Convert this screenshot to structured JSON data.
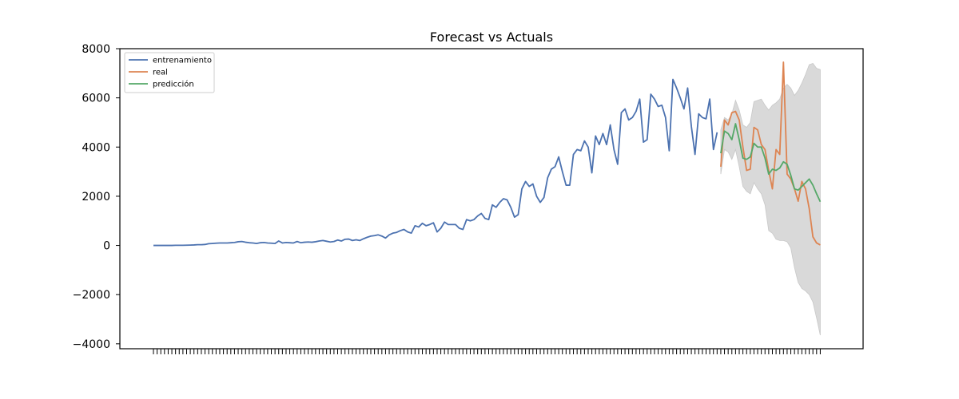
{
  "chart_data": {
    "type": "line",
    "title": "Forecast vs Actuals",
    "xlabel": "",
    "ylabel": "",
    "ylim": [
      -4200,
      8000
    ],
    "yticks": [
      -4000,
      -2000,
      0,
      2000,
      4000,
      6000,
      8000
    ],
    "ytick_labels": [
      "−4000",
      "−2000",
      "0",
      "2000",
      "4000",
      "6000",
      "8000"
    ],
    "x_tick_labels_note": "dense overlapping date labels",
    "legend": {
      "placement": "top-left",
      "entries": [
        "entrenamiento",
        "real",
        "predicción"
      ]
    },
    "grid": false,
    "colors": {
      "entrenamiento": "#4c72b0",
      "real": "#dd8452",
      "prediccion": "#55a868",
      "interval": "#d9d9d9"
    },
    "series": [
      {
        "name": "entrenamiento",
        "start_index": 0,
        "values": [
          0,
          0,
          0,
          0,
          0,
          0,
          5,
          5,
          5,
          10,
          15,
          20,
          30,
          30,
          40,
          70,
          80,
          90,
          100,
          100,
          100,
          110,
          120,
          150,
          160,
          130,
          110,
          100,
          80,
          110,
          120,
          100,
          90,
          80,
          180,
          100,
          120,
          110,
          100,
          160,
          110,
          130,
          140,
          130,
          150,
          180,
          200,
          170,
          140,
          160,
          220,
          180,
          250,
          260,
          200,
          230,
          200,
          270,
          330,
          380,
          400,
          430,
          380,
          300,
          430,
          500,
          530,
          600,
          650,
          550,
          500,
          800,
          750,
          900,
          800,
          850,
          920,
          550,
          700,
          950,
          850,
          850,
          850,
          700,
          650,
          1050,
          1000,
          1050,
          1200,
          1300,
          1100,
          1050,
          1650,
          1550,
          1750,
          1900,
          1850,
          1550,
          1150,
          1250,
          2300,
          2600,
          2400,
          2500,
          2000,
          1750,
          1950,
          2750,
          3100,
          3200,
          3600,
          3000,
          2450,
          2450,
          3700,
          3900,
          3850,
          4250,
          4000,
          2950,
          4450,
          4100,
          4550,
          4100,
          4900,
          3900,
          3300,
          5400,
          5550,
          5100,
          5200,
          5450,
          5950,
          4200,
          4300,
          6150,
          5950,
          5650,
          5700,
          5200,
          3850,
          6750,
          6400,
          6000,
          5550,
          6400,
          4850,
          3700,
          5350,
          5200,
          5150,
          5950,
          3900,
          4600
        ]
      },
      {
        "name": "real",
        "start_index": 154,
        "values": [
          3200,
          5100,
          4900,
          5400,
          5450,
          5100,
          4000,
          3050,
          3100,
          4800,
          4700,
          4100,
          3900,
          3050,
          2300,
          3900,
          3700,
          7450,
          2900,
          2700,
          2300,
          1800,
          2600,
          2300,
          1500,
          350,
          100,
          20
        ]
      },
      {
        "name": "predicción",
        "start_index": 154,
        "values": [
          3750,
          4650,
          4550,
          4300,
          4950,
          4300,
          3550,
          3500,
          3600,
          4150,
          4000,
          4000,
          3550,
          2900,
          3100,
          3050,
          3150,
          3400,
          3300,
          2850,
          2300,
          2250,
          2400,
          2550,
          2700,
          2450,
          2100,
          1780
        ]
      }
    ],
    "interval": {
      "start_index": 154,
      "upper": [
        4700,
        5200,
        5100,
        5350,
        5900,
        5500,
        4900,
        4800,
        5000,
        5850,
        5900,
        5950,
        5700,
        5500,
        5700,
        5800,
        5950,
        6400,
        6550,
        6400,
        6100,
        6300,
        6600,
        6950,
        7350,
        7400,
        7200,
        7150
      ],
      "lower": [
        2900,
        3900,
        3800,
        3500,
        3900,
        3200,
        2400,
        2200,
        2100,
        2550,
        2300,
        2100,
        1650,
        600,
        500,
        250,
        200,
        200,
        150,
        -100,
        -900,
        -1500,
        -1750,
        -1850,
        -2000,
        -2300,
        -2950,
        -3650
      ]
    }
  }
}
